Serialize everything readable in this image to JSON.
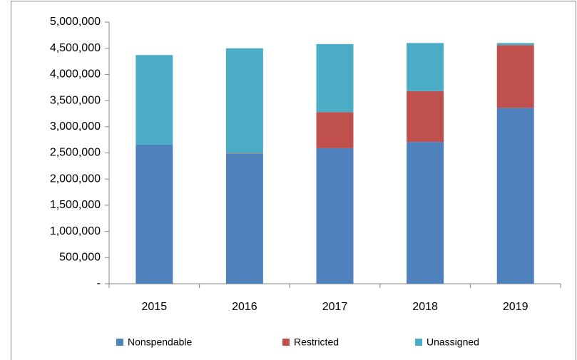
{
  "chart_data": {
    "type": "stacked_bar",
    "categories": [
      "2015",
      "2016",
      "2017",
      "2018",
      "2019"
    ],
    "series": [
      {
        "name": "Nonspendable",
        "color": "#4f81bd",
        "values": [
          2660000,
          2480000,
          2590000,
          2710000,
          3360000
        ]
      },
      {
        "name": "Restricted",
        "color": "#c0504d",
        "values": [
          0,
          10000,
          690000,
          970000,
          1200000
        ]
      },
      {
        "name": "Unassigned",
        "color": "#4bacc6",
        "values": [
          1710000,
          2010000,
          1300000,
          920000,
          40000
        ]
      }
    ],
    "ylim": [
      0,
      5000000
    ],
    "yticks": [
      {
        "value": 0,
        "label": "-"
      },
      {
        "value": 500000,
        "label": "500,000"
      },
      {
        "value": 1000000,
        "label": "1,000,000"
      },
      {
        "value": 1500000,
        "label": "1,500,000"
      },
      {
        "value": 2000000,
        "label": "2,000,000"
      },
      {
        "value": 2500000,
        "label": "2,500,000"
      },
      {
        "value": 3000000,
        "label": "3,000,000"
      },
      {
        "value": 3500000,
        "label": "3,500,000"
      },
      {
        "value": 4000000,
        "label": "4,000,000"
      },
      {
        "value": 4500000,
        "label": "4,500,000"
      },
      {
        "value": 5000000,
        "label": "5,000,000"
      }
    ],
    "grid": false,
    "legend": "bottom"
  }
}
